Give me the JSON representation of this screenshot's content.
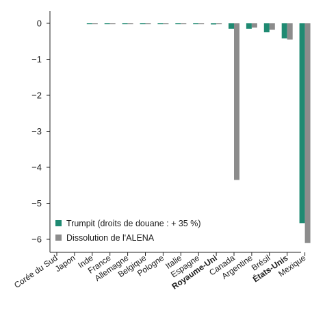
{
  "chart_data": {
    "type": "bar",
    "title": "",
    "xlabel": "",
    "ylabel": "",
    "ylim": [
      -6.5,
      0.3
    ],
    "yticks": [
      {
        "value": 0,
        "label": "0"
      },
      {
        "value": -1,
        "label": "−1"
      },
      {
        "value": -2,
        "label": "−2"
      },
      {
        "value": -3,
        "label": "−3"
      },
      {
        "value": -4,
        "label": "−4"
      },
      {
        "value": -5,
        "label": "−5"
      },
      {
        "value": -6,
        "label": "−6"
      }
    ],
    "grid": false,
    "legend_position": "bottom-left",
    "categories": [
      "Corée du Sud",
      "Japon",
      "Inde",
      "France",
      "Allemagne",
      "Belgique",
      "Pologne",
      "Italie",
      "Espagne",
      "Royaume-Uni",
      "Canada",
      "Argentine",
      "Brésil",
      "États-Unis",
      "Mexique"
    ],
    "bold_categories": [
      "Royaume-Uni",
      "États-Unis"
    ],
    "series": [
      {
        "name": "Trumpit (droits de douane : + 35 %)",
        "color": "#1f8a72",
        "values": [
          0.0,
          0.0,
          -0.02,
          -0.02,
          -0.02,
          -0.02,
          -0.02,
          -0.02,
          -0.02,
          -0.03,
          -0.15,
          -0.15,
          -0.25,
          -0.42,
          -5.55
        ]
      },
      {
        "name": "Dissolution de l'ALENA",
        "color": "#8c8c8c",
        "values": [
          0.0,
          0.0,
          -0.01,
          -0.01,
          -0.01,
          -0.01,
          -0.01,
          -0.01,
          -0.01,
          -0.02,
          -4.35,
          -0.12,
          -0.18,
          -0.45,
          -6.1
        ]
      }
    ]
  }
}
